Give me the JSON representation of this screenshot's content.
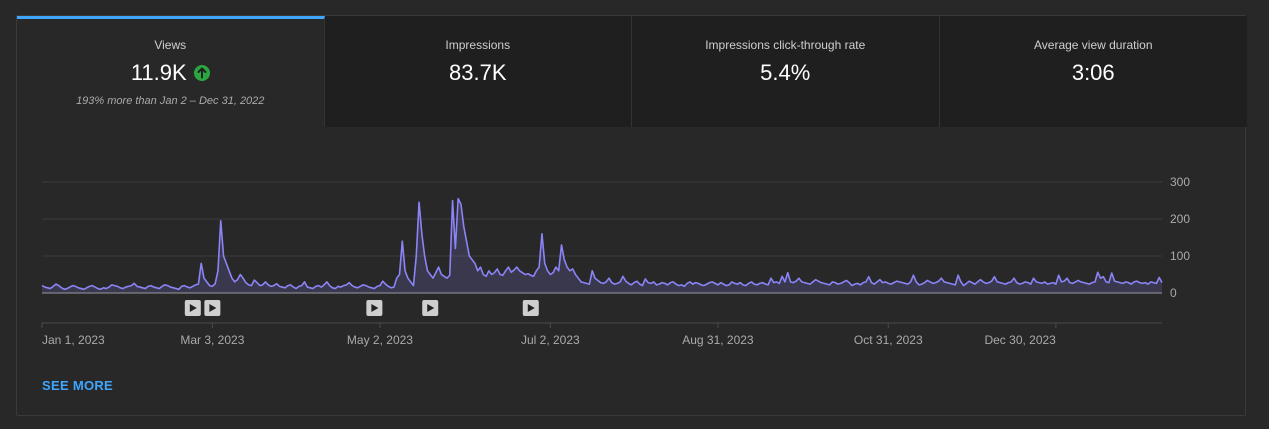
{
  "tabs": [
    {
      "label": "Views",
      "value": "11.9K",
      "comparison": "193% more than Jan 2 – Dec 31, 2022",
      "active": true,
      "trend_icon": "arrow-up-circle-icon"
    },
    {
      "label": "Impressions",
      "value": "83.7K"
    },
    {
      "label": "Impressions click-through rate",
      "value": "5.4%"
    },
    {
      "label": "Average view duration",
      "value": "3:06"
    }
  ],
  "see_more_label": "SEE MORE",
  "colors": {
    "accent": "#3ea6ff",
    "line": "#8b84f7",
    "up": "#2ba640"
  },
  "chart_data": {
    "type": "area",
    "xlabel": "",
    "ylabel": "",
    "ylim": [
      0,
      300
    ],
    "y_ticks": [
      "300",
      "200",
      "100",
      "0"
    ],
    "x_ticks": [
      "Jan 1, 2023",
      "Mar 3, 2023",
      "May 2, 2023",
      "Jul 2, 2023",
      "Aug 31, 2023",
      "Oct 31, 2023",
      "Dec 30, 2023"
    ],
    "grid": true,
    "video_markers": [
      "2023-02-24",
      "2023-03-03",
      "2023-04-30",
      "2023-05-20",
      "2023-06-25"
    ],
    "series": [
      {
        "start": "2023-01-01",
        "values": [
          20,
          16,
          14,
          12,
          18,
          24,
          20,
          14,
          10,
          12,
          16,
          20,
          18,
          14,
          12,
          10,
          14,
          18,
          20,
          16,
          12,
          10,
          14,
          12,
          16,
          22,
          20,
          18,
          14,
          12,
          16,
          18,
          20,
          26,
          18,
          16,
          14,
          12,
          18,
          20,
          16,
          14,
          12,
          18,
          22,
          20,
          16,
          14,
          12,
          10,
          18,
          20,
          16,
          14,
          18,
          22,
          24,
          80,
          40,
          30,
          20,
          18,
          25,
          60,
          195,
          100,
          80,
          60,
          40,
          30,
          36,
          50,
          40,
          28,
          22,
          20,
          35,
          28,
          20,
          22,
          30,
          22,
          18,
          20,
          25,
          18,
          16,
          14,
          20,
          22,
          16,
          12,
          18,
          20,
          30,
          16,
          14,
          12,
          18,
          20,
          16,
          22,
          30,
          20,
          14,
          12,
          18,
          16,
          20,
          22,
          28,
          20,
          16,
          14,
          18,
          22,
          20,
          16,
          14,
          12,
          18,
          20,
          32,
          24,
          18,
          14,
          16,
          40,
          50,
          140,
          60,
          40,
          30,
          20,
          100,
          245,
          160,
          100,
          60,
          50,
          40,
          55,
          70,
          50,
          45,
          40,
          48,
          250,
          120,
          255,
          240,
          180,
          140,
          100,
          90,
          80,
          60,
          70,
          50,
          45,
          60,
          50,
          55,
          65,
          50,
          48,
          60,
          70,
          56,
          62,
          70,
          60,
          55,
          50,
          52,
          48,
          45,
          60,
          70,
          160,
          80,
          60,
          50,
          55,
          70,
          60,
          130,
          90,
          70,
          60,
          65,
          50,
          40,
          30,
          28,
          26,
          24,
          60,
          40,
          34,
          28,
          26,
          30,
          40,
          28,
          24,
          26,
          30,
          45,
          32,
          26,
          22,
          28,
          32,
          24,
          20,
          38,
          28,
          26,
          30,
          22,
          24,
          28,
          26,
          22,
          28,
          30,
          24,
          20,
          22,
          18,
          26,
          30,
          24,
          28,
          26,
          22,
          20,
          24,
          28,
          30,
          26,
          22,
          28,
          24,
          20,
          22,
          30,
          26,
          24,
          28,
          22,
          20,
          26,
          30,
          24,
          22,
          26,
          28,
          24,
          22,
          40,
          28,
          30,
          26,
          45,
          30,
          55,
          30,
          28,
          32,
          40,
          30,
          28,
          26,
          24,
          30,
          36,
          32,
          28,
          26,
          24,
          22,
          30,
          28,
          24,
          26,
          30,
          34,
          28,
          20,
          24,
          26,
          22,
          28,
          30,
          44,
          28,
          24,
          30,
          36,
          28,
          30,
          26,
          24,
          28,
          32,
          30,
          28,
          26,
          24,
          30,
          48,
          30,
          22,
          24,
          28,
          34,
          30,
          26,
          28,
          32,
          40,
          30,
          28,
          26,
          24,
          22,
          48,
          30,
          20,
          26,
          32,
          28,
          24,
          30,
          36,
          30,
          26,
          28,
          32,
          44,
          30,
          28,
          26,
          24,
          28,
          30,
          40,
          28,
          24,
          26,
          30,
          28,
          24,
          40,
          30,
          28,
          26,
          30,
          24,
          26,
          28,
          24,
          48,
          30,
          32,
          40,
          28,
          26,
          30,
          34,
          30,
          28,
          26,
          24,
          28,
          30,
          56,
          40,
          44,
          30,
          28,
          54,
          32,
          30,
          28,
          26,
          30,
          28,
          24,
          30,
          32,
          28,
          26,
          28,
          24,
          30,
          28,
          26,
          42,
          28
        ]
      }
    ]
  }
}
